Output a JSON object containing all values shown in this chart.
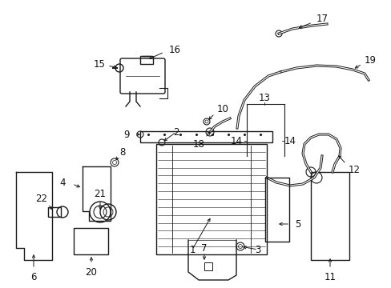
{
  "bg_color": "#ffffff",
  "line_color": "#1a1a1a",
  "text_color": "#111111",
  "figsize": [
    4.89,
    3.6
  ],
  "dpi": 100,
  "lw": 1.0
}
